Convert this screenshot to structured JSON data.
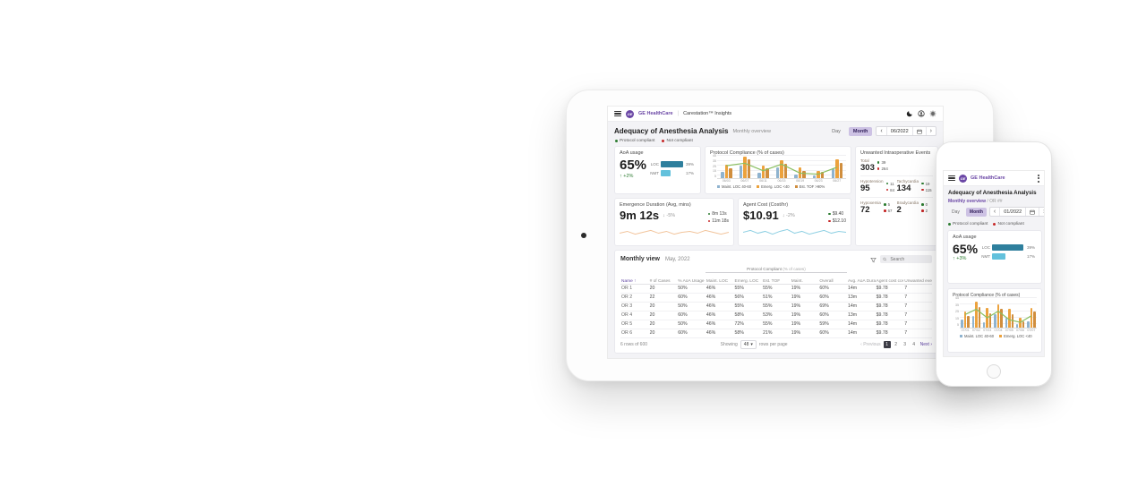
{
  "brand": {
    "name": "GE HealthCare",
    "logo": "GE",
    "product": "Carestation™ Insights",
    "purple": "#6a46a5"
  },
  "tablet": {
    "page_title": "Adequacy of Anesthesia Analysis",
    "page_subtitle": "Monthly overview",
    "toggle": {
      "day": "Day",
      "month": "Month"
    },
    "nav": {
      "prev": "‹",
      "date": "06/2022",
      "next": "›"
    },
    "legend": [
      {
        "label": "Protocol compliant",
        "color": "#2e7d32"
      },
      {
        "label": "Not compliant",
        "color": "#c62828"
      }
    ],
    "aoa": {
      "title": "AoA usage",
      "value": "65%",
      "delta": "↑ +2%"
    },
    "protocol_title": "Protocol Compliance (% of cases)",
    "events": {
      "title": "Unwanted Intraoperative Events",
      "good_color": "#2e7d32",
      "bad_color": "#c62828",
      "metrics": [
        {
          "label": "Total",
          "value": "303",
          "good": "39",
          "bad": "264"
        },
        {
          "label": "Hypotension",
          "value": "95",
          "good": "11",
          "bad": "84"
        },
        {
          "label": "Tachycardia",
          "value": "134",
          "good": "19",
          "bad": "115"
        },
        {
          "label": "Hypoxemia",
          "value": "72",
          "good": "5",
          "bad": "67"
        },
        {
          "label": "Bradycardia",
          "value": "2",
          "good": "0",
          "bad": "2"
        }
      ]
    },
    "emergence": {
      "title": "Emergence Duration (Avg, mins)",
      "value": "9m 12s",
      "delta": "↓ -5%",
      "good": "8m 13s",
      "bad": "11m 18s"
    },
    "agent": {
      "title": "Agent Cost (Cost/hr)",
      "value": "$10.91",
      "delta": "↓ -2%",
      "good": "$9.40",
      "bad": "$12.10"
    },
    "table": {
      "title": "Monthly view",
      "date": "May, 2022",
      "search_placeholder": "Search",
      "group_label": "Protocol Compliant",
      "group_note": "(% of cases)",
      "columns": [
        "Name ↑",
        "# of Cases",
        "% AoA Usage",
        "Maint. LOC",
        "Emerg. LOC",
        "Est. TOF",
        "Maint.",
        "Overall",
        "Avg. AoA Dura… (m)",
        "Agent cost cost/hr",
        "Unwanted events"
      ],
      "rows": [
        [
          "OR 1",
          "20",
          "50%",
          "46%",
          "55%",
          "55%",
          "19%",
          "60%",
          "14m",
          "$9.78",
          "7"
        ],
        [
          "OR 2",
          "22",
          "60%",
          "46%",
          "56%",
          "51%",
          "19%",
          "60%",
          "13m",
          "$9.78",
          "7"
        ],
        [
          "OR 3",
          "20",
          "50%",
          "46%",
          "55%",
          "55%",
          "19%",
          "69%",
          "14m",
          "$9.78",
          "7"
        ],
        [
          "OR 4",
          "20",
          "60%",
          "46%",
          "58%",
          "53%",
          "19%",
          "60%",
          "13m",
          "$9.78",
          "7"
        ],
        [
          "OR 5",
          "20",
          "50%",
          "46%",
          "72%",
          "55%",
          "19%",
          "59%",
          "14m",
          "$9.78",
          "7"
        ],
        [
          "OR 6",
          "20",
          "60%",
          "46%",
          "58%",
          "21%",
          "19%",
          "60%",
          "14m",
          "$9.78",
          "7"
        ]
      ],
      "footer": {
        "rows_info": "6 rows of 600",
        "showing": "Showing",
        "per_page_value": "48",
        "per_page_caret": "▾",
        "per_page_label": "rows per page",
        "prev": "‹ Previous",
        "pages": [
          "1",
          "2",
          "3",
          "4"
        ],
        "current_page": "1",
        "next": "Next ›"
      }
    }
  },
  "phone": {
    "page_title": "Adequacy of Anesthesia Analysis",
    "crumb_link": "Monthly overview",
    "crumb_rest": " / OR ##",
    "toggle": {
      "day": "Day",
      "month": "Month"
    },
    "nav": {
      "prev": "‹",
      "date": "01/2022",
      "next": "›"
    },
    "legend": [
      {
        "label": "Protocol compliant",
        "color": "#2e7d32"
      },
      {
        "label": "Not compliant",
        "color": "#c62828"
      }
    ],
    "aoa": {
      "title": "AoA usage",
      "value": "65%",
      "delta": "↑ +3%"
    },
    "protocol_title": "Protocol Compliance (% of cases)"
  },
  "chart_data": [
    {
      "type": "grouped_bar_line",
      "title": "Protocol Compliance (% of cases)",
      "categories": [
        "06/03",
        "06/07",
        "06/11",
        "06/15",
        "06/19",
        "06/23",
        "06/27"
      ],
      "series": [
        {
          "name": "Maint. LOC 40-60",
          "color": "#8fb3cf",
          "values": [
            12,
            25,
            10,
            22,
            8,
            5,
            20
          ]
        },
        {
          "name": "Emerg. LOC <40",
          "color": "#eca23d",
          "values": [
            27,
            43,
            26,
            36,
            21,
            15,
            38
          ]
        },
        {
          "name": "Est. TOF >90%",
          "color": "#d08e3e",
          "values": [
            20,
            38,
            19,
            29,
            15,
            12,
            31
          ]
        }
      ],
      "line": {
        "name": "Overall",
        "color": "#8abf62",
        "values": [
          25,
          30,
          15,
          28,
          10,
          8,
          22
        ]
      },
      "ylim": [
        0,
        45
      ],
      "yticks": [
        5,
        15,
        25,
        35,
        45
      ],
      "bar_w": 3.5
    },
    {
      "type": "grouped_bar_line",
      "title": "Protocol Compliance (% of cases)",
      "categories": [
        "07/01",
        "07/02",
        "07/03",
        "07/04",
        "07/05",
        "07/06",
        "07/07"
      ],
      "series": [
        {
          "name": "Maint. LOC 40-60",
          "color": "#8fb3cf",
          "values": [
            12,
            18,
            8,
            20,
            15,
            5,
            10
          ]
        },
        {
          "name": "Emerg. LOC <40",
          "color": "#eca23d",
          "values": [
            25,
            40,
            30,
            35,
            28,
            15,
            30
          ]
        },
        {
          "name": "Est. TOF >90%",
          "color": "#d08e3e",
          "values": [
            18,
            32,
            22,
            28,
            20,
            10,
            24
          ]
        }
      ],
      "line": {
        "name": "Overall",
        "color": "#8abf62",
        "values": [
          20,
          28,
          15,
          25,
          12,
          8,
          18
        ]
      },
      "ylim": [
        0,
        45
      ],
      "yticks": [
        5,
        15,
        25,
        35,
        45
      ],
      "bar_w": 2.5
    },
    {
      "type": "sparkline",
      "color": "#f2c49b",
      "ylim": [
        0,
        10
      ],
      "values": [
        4,
        6,
        3,
        5,
        7,
        4,
        6,
        3,
        5,
        6,
        4,
        7,
        5,
        3,
        5
      ]
    },
    {
      "type": "sparkline",
      "color": "#8fd0e3",
      "ylim": [
        0,
        10
      ],
      "values": [
        5,
        7,
        4,
        6,
        3,
        6,
        8,
        4,
        6,
        3,
        5,
        7,
        4,
        6,
        5
      ]
    },
    {
      "type": "hbar",
      "max": 41,
      "bars": [
        {
          "label": "LOC",
          "text": "39%",
          "value": 39,
          "color": "#2e7f9d"
        },
        {
          "label": "NMT",
          "text": "17%",
          "value": 17,
          "color": "#63c1dc"
        }
      ]
    },
    {
      "type": "hbar",
      "max": 41,
      "bars": [
        {
          "label": "LOC",
          "text": "39%",
          "value": 39,
          "color": "#2e7f9d"
        },
        {
          "label": "NMT",
          "text": "17%",
          "value": 17,
          "color": "#63c1dc"
        }
      ]
    }
  ]
}
